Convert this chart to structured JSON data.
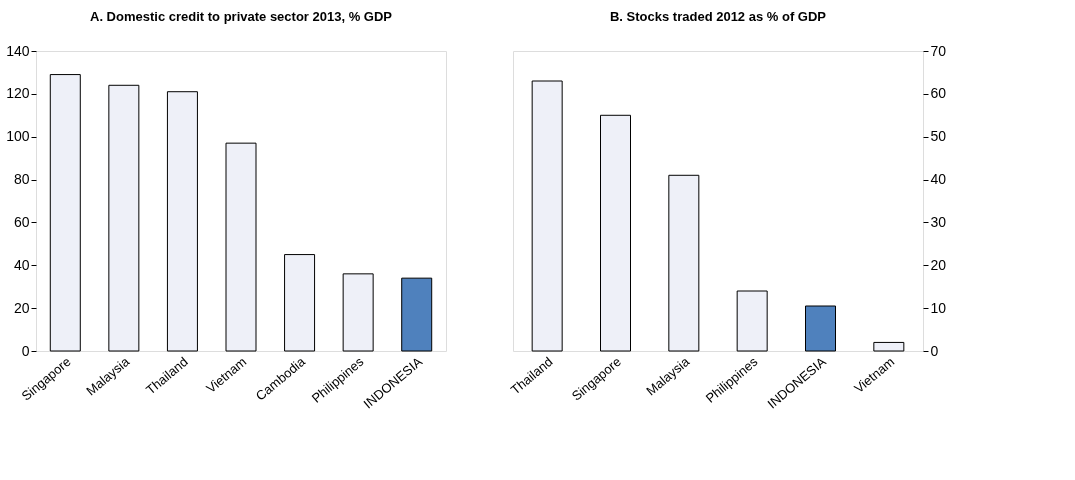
{
  "chart_data": [
    {
      "type": "bar",
      "title": "A. Domestic credit to private sector 2013, % GDP",
      "categories": [
        "Singapore",
        "Malaysia",
        "Thailand",
        "Vietnam",
        "Cambodia",
        "Philippines",
        "INDONESIA"
      ],
      "values": [
        129,
        124,
        121,
        97,
        45,
        36,
        34
      ],
      "colors": [
        "#eef0f8",
        "#eef0f8",
        "#eef0f8",
        "#eef0f8",
        "#eef0f8",
        "#eef0f8",
        "#4f81bd"
      ],
      "ylim": [
        0,
        140
      ],
      "yticks": [
        0,
        20,
        40,
        60,
        80,
        100,
        120,
        140
      ],
      "grid": false
    },
    {
      "type": "bar",
      "title": "B. Stocks traded 2012 as % of GDP",
      "categories": [
        "Thailand",
        "Singapore",
        "Malaysia",
        "Philippines",
        "INDONESIA",
        "Vietnam"
      ],
      "values": [
        63,
        55,
        41,
        14,
        10.5,
        2
      ],
      "colors": [
        "#eef0f8",
        "#eef0f8",
        "#eef0f8",
        "#eef0f8",
        "#4f81bd",
        "#eef0f8"
      ],
      "ylim": [
        0,
        70
      ],
      "yticks": [
        0,
        10,
        20,
        30,
        40,
        50,
        60,
        70
      ],
      "grid": false
    }
  ]
}
